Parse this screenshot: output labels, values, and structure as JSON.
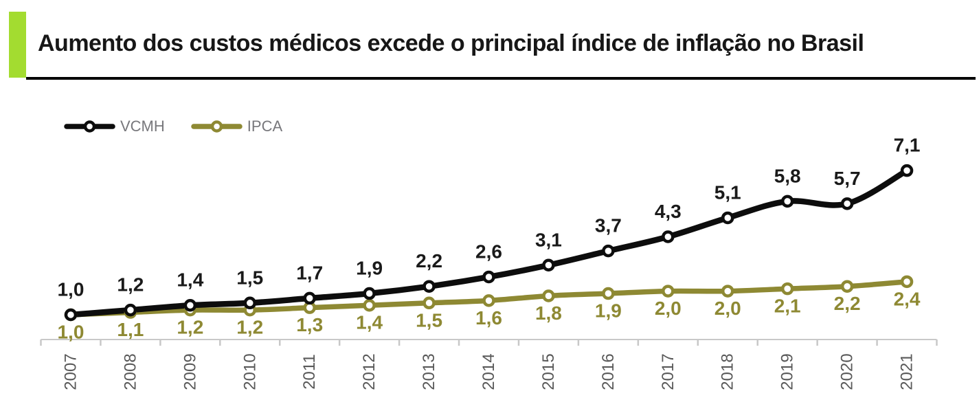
{
  "header": {
    "title": "Aumento dos custos médicos excede o principal índice de inflação no Brasil",
    "accent_color": "#A3DC30",
    "underline_color": "#000000"
  },
  "legend": {
    "position": "top-left",
    "text_color": "#77777B"
  },
  "chart_data": {
    "type": "line",
    "categories": [
      "2007",
      "2008",
      "2009",
      "2010",
      "2011",
      "2012",
      "2013",
      "2014",
      "2015",
      "2016",
      "2017",
      "2018",
      "2019",
      "2020",
      "2021"
    ],
    "series": [
      {
        "name": "VCMH",
        "color": "#0D0D0D",
        "label_color": "#1A1A1A",
        "values": [
          1.0,
          1.2,
          1.4,
          1.5,
          1.7,
          1.9,
          2.2,
          2.6,
          3.1,
          3.7,
          4.3,
          5.1,
          5.8,
          5.7,
          7.1
        ],
        "labels": [
          "1,0",
          "1,2",
          "1,4",
          "1,5",
          "1,7",
          "1,9",
          "2,2",
          "2,6",
          "3,1",
          "3,7",
          "4,3",
          "5,1",
          "5,8",
          "5,7",
          "7,1"
        ],
        "label_position": "above",
        "marker": "circle-white-fill"
      },
      {
        "name": "IPCA",
        "color": "#8E8933",
        "label_color": "#8E8933",
        "values": [
          1.0,
          1.1,
          1.2,
          1.2,
          1.3,
          1.4,
          1.5,
          1.6,
          1.8,
          1.9,
          2.0,
          2.0,
          2.1,
          2.2,
          2.4
        ],
        "labels": [
          "1,0",
          "1,1",
          "1,2",
          "1,2",
          "1,3",
          "1,4",
          "1,5",
          "1,6",
          "1,8",
          "1,9",
          "2,0",
          "2,0",
          "2,1",
          "2,2",
          "2,4"
        ],
        "label_position": "below",
        "marker": "circle-white-fill"
      }
    ],
    "title": "",
    "xlabel": "",
    "ylabel": "",
    "ylim": [
      0,
      7.5
    ],
    "grid": false,
    "legend_position": "top-left",
    "smooth_lines": true,
    "axis_color": "#C8C8C8",
    "tick_label_color": "#595959",
    "x_tick_label_rotation": -90
  }
}
